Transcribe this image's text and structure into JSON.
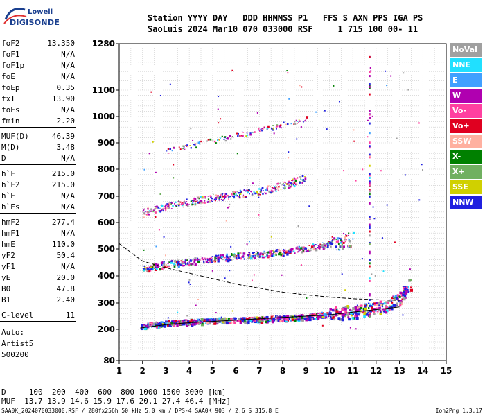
{
  "logo": {
    "top": "Lowell",
    "bottom": "DIGISONDE"
  },
  "header": {
    "line1": "Station YYYY DAY   DDD HHMMSS P1   FFS S AXN PPS IGA PS",
    "line2": "SaoLuis 2024 Mar10 070 033000 RSF     1 715 100 00- 11"
  },
  "params": [
    {
      "label": "foF2",
      "value": "13.350"
    },
    {
      "label": "foF1",
      "value": "N/A"
    },
    {
      "label": "foF1p",
      "value": "N/A"
    },
    {
      "label": "foE",
      "value": "N/A"
    },
    {
      "label": "foEp",
      "value": "0.35"
    },
    {
      "label": "fxI",
      "value": "13.90"
    },
    {
      "label": "foEs",
      "value": "N/A"
    },
    {
      "label": "fmin",
      "value": "2.20"
    },
    {
      "label": "MUF(D)",
      "value": "46.39"
    },
    {
      "label": "M(D)",
      "value": "3.48"
    },
    {
      "label": "D",
      "value": "N/A"
    },
    {
      "label": "h`F",
      "value": "215.0"
    },
    {
      "label": "h`F2",
      "value": "215.0"
    },
    {
      "label": "h`E",
      "value": "N/A"
    },
    {
      "label": "h`Es",
      "value": "N/A"
    },
    {
      "label": "hmF2",
      "value": "277.4"
    },
    {
      "label": "hmF1",
      "value": "N/A"
    },
    {
      "label": "hmE",
      "value": "110.0"
    },
    {
      "label": "yF2",
      "value": "50.4"
    },
    {
      "label": "yF1",
      "value": "N/A"
    },
    {
      "label": "yE",
      "value": "20.0"
    },
    {
      "label": "B0",
      "value": "47.8"
    },
    {
      "label": "B1",
      "value": "2.40"
    },
    {
      "label": "C-level",
      "value": "11"
    }
  ],
  "auto": {
    "line1": "Auto:",
    "line2": "Artist5",
    "line3": "500200"
  },
  "legend": [
    {
      "label": "NoVal",
      "color": "#a0a0a0"
    },
    {
      "label": "NNE",
      "color": "#20e0ff"
    },
    {
      "label": "E",
      "color": "#40a0ff"
    },
    {
      "label": "W",
      "color": "#b000b0"
    },
    {
      "label": "Vo-",
      "color": "#ff40a0"
    },
    {
      "label": "Vo+",
      "color": "#e00020"
    },
    {
      "label": "SSW",
      "color": "#ffb0a0"
    },
    {
      "label": "X-",
      "color": "#008000"
    },
    {
      "label": "X+",
      "color": "#70b060"
    },
    {
      "label": "SSE",
      "color": "#d0d000"
    },
    {
      "label": "NNW",
      "color": "#2020e0"
    }
  ],
  "footer": {
    "line1": "D     100  200  400  600  800 1000 1500 3000 [km]",
    "line2": "MUF  13.7 13.9 14.6 15.9 17.6 20.1 27.4 46.4 [MHz]",
    "line3": "SAA0K_2024070033000.RSF / 280fx256h 50 kHz 5.0 km / DPS-4 SAA0K 903 / 2.6 S 315.8 E",
    "version": "Ion2Png 1.3.17"
  },
  "chart_data": {
    "type": "scatter",
    "xlabel": "",
    "ylabel": "",
    "xlim": [
      1,
      15
    ],
    "x_ticks": [
      "1",
      "2",
      "3",
      "4",
      "5",
      "6",
      "7",
      "8",
      "9",
      "10",
      "11",
      "12",
      "13",
      "14",
      "15"
    ],
    "y_ticks": [
      "80",
      "200",
      "300",
      "400",
      "500",
      "600",
      "700",
      "800",
      "900",
      "1000",
      "1100",
      "1280"
    ],
    "y_tick_values": [
      80,
      200,
      300,
      400,
      500,
      600,
      700,
      800,
      900,
      1000,
      1100,
      1280
    ],
    "traces": [
      {
        "name": "F-hop1",
        "x": [
          1.9,
          3,
          4,
          5,
          6,
          7,
          8,
          9,
          10,
          10.5,
          11,
          11.5,
          12,
          12.5,
          13,
          13.5
        ],
        "y": [
          215,
          225,
          230,
          235,
          238,
          240,
          244,
          250,
          260,
          265,
          270,
          275,
          282,
          295,
          320,
          380
        ]
      },
      {
        "name": "F-hop2",
        "x": [
          2,
          3,
          4,
          5,
          6,
          7,
          8,
          9,
          10,
          11
        ],
        "y": [
          430,
          445,
          455,
          465,
          475,
          480,
          490,
          505,
          520,
          540
        ]
      },
      {
        "name": "F-hop3",
        "x": [
          2,
          3,
          4,
          5,
          6,
          7,
          8,
          9
        ],
        "y": [
          640,
          660,
          680,
          695,
          710,
          720,
          740,
          770
        ]
      },
      {
        "name": "F-hop4",
        "x": [
          3,
          4,
          5,
          6,
          7,
          8,
          9
        ],
        "y": [
          870,
          890,
          910,
          930,
          950,
          970,
          990
        ]
      }
    ],
    "profile_curve": {
      "x": [
        1.9,
        3,
        4,
        6,
        8,
        10,
        11,
        12,
        13
      ],
      "y": [
        205,
        218,
        225,
        235,
        245,
        255,
        265,
        275,
        285
      ]
    },
    "muf_curve": {
      "x": [
        1,
        2,
        3,
        4,
        5,
        6,
        7,
        8,
        9,
        10,
        11,
        12,
        13
      ],
      "y": [
        520,
        455,
        430,
        410,
        390,
        370,
        355,
        340,
        330,
        322,
        316,
        312,
        310
      ]
    }
  }
}
